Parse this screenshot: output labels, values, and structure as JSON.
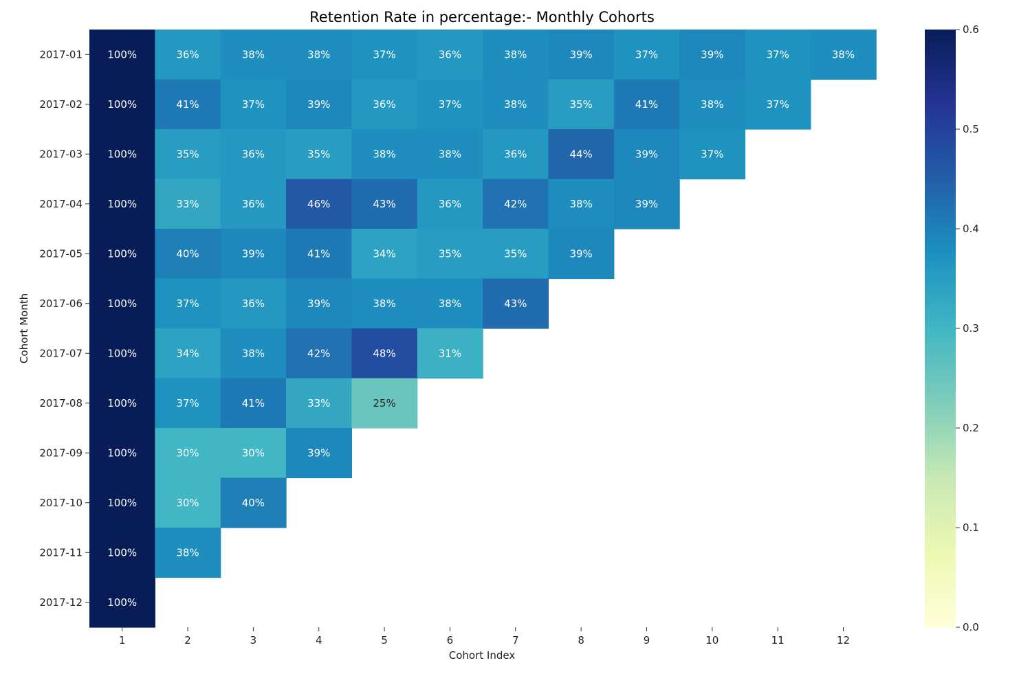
{
  "chart_data": {
    "type": "heatmap",
    "title": "Retention Rate in percentage:- Monthly Cohorts",
    "xlabel": "Cohort Index",
    "ylabel": "Cohort Month",
    "x_categories": [
      "1",
      "2",
      "3",
      "4",
      "5",
      "6",
      "7",
      "8",
      "9",
      "10",
      "11",
      "12"
    ],
    "y_categories": [
      "2017-01",
      "2017-02",
      "2017-03",
      "2017-04",
      "2017-05",
      "2017-06",
      "2017-07",
      "2017-08",
      "2017-09",
      "2017-10",
      "2017-11",
      "2017-12"
    ],
    "values": [
      [
        1.0,
        0.36,
        0.38,
        0.38,
        0.37,
        0.36,
        0.38,
        0.39,
        0.37,
        0.39,
        0.37,
        0.38
      ],
      [
        1.0,
        0.41,
        0.37,
        0.39,
        0.36,
        0.37,
        0.38,
        0.35,
        0.41,
        0.38,
        0.37,
        null
      ],
      [
        1.0,
        0.35,
        0.36,
        0.35,
        0.38,
        0.38,
        0.36,
        0.44,
        0.39,
        0.37,
        null,
        null
      ],
      [
        1.0,
        0.33,
        0.36,
        0.46,
        0.43,
        0.36,
        0.42,
        0.38,
        0.39,
        null,
        null,
        null
      ],
      [
        1.0,
        0.4,
        0.39,
        0.41,
        0.34,
        0.35,
        0.35,
        0.39,
        null,
        null,
        null,
        null
      ],
      [
        1.0,
        0.37,
        0.36,
        0.39,
        0.38,
        0.38,
        0.43,
        null,
        null,
        null,
        null,
        null
      ],
      [
        1.0,
        0.34,
        0.38,
        0.42,
        0.48,
        0.31,
        null,
        null,
        null,
        null,
        null,
        null
      ],
      [
        1.0,
        0.37,
        0.41,
        0.33,
        0.25,
        null,
        null,
        null,
        null,
        null,
        null,
        null
      ],
      [
        1.0,
        0.3,
        0.3,
        0.39,
        null,
        null,
        null,
        null,
        null,
        null,
        null,
        null
      ],
      [
        1.0,
        0.3,
        0.4,
        null,
        null,
        null,
        null,
        null,
        null,
        null,
        null,
        null
      ],
      [
        1.0,
        0.38,
        null,
        null,
        null,
        null,
        null,
        null,
        null,
        null,
        null,
        null
      ],
      [
        1.0,
        null,
        null,
        null,
        null,
        null,
        null,
        null,
        null,
        null,
        null,
        null
      ]
    ],
    "annotations": [
      [
        "100%",
        "36%",
        "38%",
        "38%",
        "37%",
        "36%",
        "38%",
        "39%",
        "37%",
        "39%",
        "37%",
        "38%"
      ],
      [
        "100%",
        "41%",
        "37%",
        "39%",
        "36%",
        "37%",
        "38%",
        "35%",
        "41%",
        "38%",
        "37%",
        ""
      ],
      [
        "100%",
        "35%",
        "36%",
        "35%",
        "38%",
        "38%",
        "36%",
        "44%",
        "39%",
        "37%",
        "",
        ""
      ],
      [
        "100%",
        "33%",
        "36%",
        "46%",
        "43%",
        "36%",
        "42%",
        "38%",
        "39%",
        "",
        "",
        ""
      ],
      [
        "100%",
        "40%",
        "39%",
        "41%",
        "34%",
        "35%",
        "35%",
        "39%",
        "",
        "",
        "",
        ""
      ],
      [
        "100%",
        "37%",
        "36%",
        "39%",
        "38%",
        "38%",
        "43%",
        "",
        "",
        "",
        "",
        ""
      ],
      [
        "100%",
        "34%",
        "38%",
        "42%",
        "48%",
        "31%",
        "",
        "",
        "",
        "",
        "",
        ""
      ],
      [
        "100%",
        "37%",
        "41%",
        "33%",
        "25%",
        "",
        "",
        "",
        "",
        "",
        "",
        ""
      ],
      [
        "100%",
        "30%",
        "30%",
        "39%",
        "",
        "",
        "",
        "",
        "",
        "",
        "",
        ""
      ],
      [
        "100%",
        "30%",
        "40%",
        "",
        "",
        "",
        "",
        "",
        "",
        "",
        "",
        ""
      ],
      [
        "100%",
        "38%",
        "",
        "",
        "",
        "",
        "",
        "",
        "",
        "",
        "",
        ""
      ],
      [
        "100%",
        "",
        "",
        "",
        "",
        "",
        "",
        "",
        "",
        "",
        "",
        ""
      ]
    ],
    "colormap": "YlGnBu",
    "vmin": 0.0,
    "vmax": 0.6,
    "colorbar_ticks": [
      "0.0",
      "0.1",
      "0.2",
      "0.3",
      "0.4",
      "0.5",
      "0.6"
    ],
    "colormap_stops": [
      "#ffffd9",
      "#edf8b1",
      "#c7e9b4",
      "#7fcdbb",
      "#41b6c4",
      "#1d91c0",
      "#225ea8",
      "#253494",
      "#081d58"
    ],
    "legend_position": "right",
    "grid": false
  }
}
